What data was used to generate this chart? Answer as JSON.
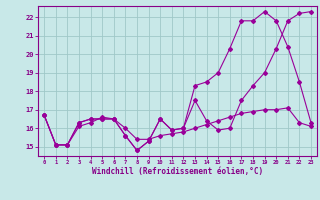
{
  "xlabel": "Windchill (Refroidissement éolien,°C)",
  "ylim": [
    14.5,
    22.6
  ],
  "xlim": [
    -0.5,
    23.5
  ],
  "yticks": [
    15,
    16,
    17,
    18,
    19,
    20,
    21,
    22
  ],
  "xticks": [
    0,
    1,
    2,
    3,
    4,
    5,
    6,
    7,
    8,
    9,
    10,
    11,
    12,
    13,
    14,
    15,
    16,
    17,
    18,
    19,
    20,
    21,
    22,
    23
  ],
  "background_color": "#c8e8e8",
  "grid_color": "#a0c8c8",
  "line_color": "#990099",
  "series1": {
    "x": [
      0,
      1,
      2,
      3,
      4,
      5,
      6,
      7,
      8,
      9,
      10,
      11,
      12,
      13,
      14,
      15,
      16,
      17,
      18,
      19,
      20,
      21,
      22,
      23
    ],
    "y": [
      16.7,
      15.1,
      15.1,
      16.3,
      16.5,
      16.5,
      16.5,
      15.6,
      14.8,
      15.3,
      16.5,
      15.9,
      16.0,
      17.5,
      16.4,
      15.9,
      16.0,
      17.5,
      18.3,
      19.0,
      20.3,
      21.8,
      22.2,
      22.3
    ]
  },
  "series2": {
    "x": [
      0,
      1,
      2,
      3,
      4,
      5,
      6,
      7,
      8,
      9,
      10,
      11,
      12,
      13,
      14,
      15,
      16,
      17,
      18,
      19,
      20,
      21,
      22,
      23
    ],
    "y": [
      16.7,
      15.1,
      15.1,
      16.3,
      16.5,
      16.5,
      16.5,
      15.6,
      14.8,
      15.3,
      16.5,
      15.9,
      16.0,
      18.3,
      18.5,
      19.0,
      20.3,
      21.8,
      21.8,
      22.3,
      21.8,
      20.4,
      18.5,
      16.3
    ]
  },
  "series3": {
    "x": [
      0,
      1,
      2,
      3,
      4,
      5,
      6,
      7,
      8,
      9,
      10,
      11,
      12,
      13,
      14,
      15,
      16,
      17,
      18,
      19,
      20,
      21,
      22,
      23
    ],
    "y": [
      16.7,
      15.1,
      15.1,
      16.1,
      16.3,
      16.6,
      16.5,
      16.0,
      15.4,
      15.4,
      15.6,
      15.7,
      15.8,
      16.0,
      16.2,
      16.4,
      16.6,
      16.8,
      16.9,
      17.0,
      17.0,
      17.1,
      16.3,
      16.1
    ]
  }
}
